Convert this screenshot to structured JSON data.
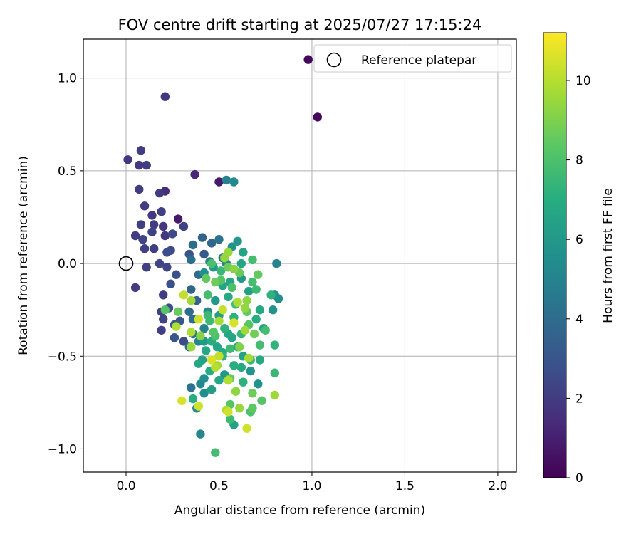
{
  "chart_data": {
    "type": "scatter",
    "title": "FOV centre drift starting at 2025/07/27 17:15:24",
    "xlabel": "Angular distance from reference (arcmin)",
    "ylabel": "Rotation from reference (arcmin)",
    "xlim": [
      -0.23,
      2.1
    ],
    "ylim": [
      -1.125,
      1.21
    ],
    "xticks": [
      0.0,
      0.5,
      1.0,
      1.5,
      2.0
    ],
    "xtick_labels": [
      "0.0",
      "0.5",
      "1.0",
      "1.5",
      "2.0"
    ],
    "yticks": [
      -1.0,
      -0.5,
      0.0,
      0.5,
      1.0
    ],
    "ytick_labels": [
      "−1.0",
      "−0.5",
      "0.0",
      "0.5",
      "1.0"
    ],
    "grid": true,
    "legend": {
      "position": "upper-right",
      "entries": [
        "Reference platepar"
      ]
    },
    "reference_point": {
      "x": 0.0,
      "y": 0.0,
      "marker": "open-circle"
    },
    "colorbar": {
      "label": "Hours from first FF file",
      "range": [
        0,
        11.2
      ],
      "ticks": [
        0,
        2,
        4,
        6,
        8,
        10
      ],
      "tick_labels": [
        "0",
        "2",
        "4",
        "6",
        "8",
        "10"
      ],
      "colormap": "viridis"
    },
    "series": [
      {
        "points": [
          [
            0.98,
            1.1,
            0.2
          ],
          [
            1.03,
            0.79,
            0.3
          ],
          [
            0.21,
            0.9,
            1.8
          ],
          [
            0.01,
            0.56,
            1.9
          ],
          [
            0.08,
            0.61,
            2.0
          ],
          [
            0.07,
            0.53,
            1.9
          ],
          [
            0.11,
            0.53,
            2.0
          ],
          [
            0.37,
            0.48,
            1.3
          ],
          [
            0.5,
            0.44,
            0.8
          ],
          [
            0.54,
            0.45,
            5.0
          ],
          [
            0.58,
            0.44,
            5.3
          ],
          [
            0.07,
            0.4,
            2.0
          ],
          [
            0.18,
            0.38,
            1.9
          ],
          [
            0.21,
            0.39,
            1.4
          ],
          [
            0.1,
            0.31,
            2.0
          ],
          [
            0.14,
            0.26,
            1.9
          ],
          [
            0.19,
            0.28,
            2.2
          ],
          [
            0.28,
            0.24,
            0.8
          ],
          [
            0.08,
            0.21,
            2.1
          ],
          [
            0.15,
            0.21,
            2.0
          ],
          [
            0.2,
            0.2,
            1.8
          ],
          [
            0.31,
            0.2,
            2.2
          ],
          [
            0.05,
            0.15,
            2.0
          ],
          [
            0.09,
            0.13,
            2.3
          ],
          [
            0.14,
            0.17,
            2.2
          ],
          [
            0.21,
            0.15,
            1.8
          ],
          [
            0.25,
            0.16,
            2.5
          ],
          [
            0.36,
            0.1,
            4.0
          ],
          [
            0.41,
            0.14,
            3.6
          ],
          [
            0.46,
            0.11,
            3.8
          ],
          [
            0.5,
            0.13,
            4.3
          ],
          [
            0.1,
            0.08,
            2.2
          ],
          [
            0.15,
            0.08,
            2.1
          ],
          [
            0.22,
            0.06,
            2.7
          ],
          [
            0.24,
            0.07,
            2.5
          ],
          [
            0.34,
            0.05,
            3.0
          ],
          [
            0.42,
            0.05,
            3.2
          ],
          [
            0.52,
            0.03,
            4.4
          ],
          [
            0.18,
            0.0,
            2.3
          ],
          [
            0.11,
            -0.02,
            2.2
          ],
          [
            0.22,
            -0.02,
            2.4
          ],
          [
            0.35,
            0.02,
            4.0
          ],
          [
            0.45,
            0.01,
            4.8
          ],
          [
            0.54,
            0.0,
            5.2
          ],
          [
            0.57,
            0.09,
            5.8
          ],
          [
            0.6,
            0.12,
            6.0
          ],
          [
            0.63,
            0.06,
            6.5
          ],
          [
            0.68,
            0.02,
            7.8
          ],
          [
            0.81,
            0.0,
            5.0
          ],
          [
            0.05,
            -0.13,
            2.0
          ],
          [
            0.27,
            -0.06,
            2.8
          ],
          [
            0.2,
            -0.17,
            2.0
          ],
          [
            0.24,
            -0.11,
            2.8
          ],
          [
            0.35,
            -0.14,
            3.6
          ],
          [
            0.39,
            -0.06,
            4.0
          ],
          [
            0.42,
            -0.05,
            5.5
          ],
          [
            0.47,
            -0.02,
            6.1
          ],
          [
            0.43,
            -0.08,
            8.5
          ],
          [
            0.51,
            -0.04,
            7.5
          ],
          [
            0.55,
            0.06,
            9.5
          ],
          [
            0.62,
            -0.08,
            6.0
          ],
          [
            0.66,
            -0.15,
            6.3
          ],
          [
            0.71,
            -0.06,
            8.5
          ],
          [
            0.7,
            -0.14,
            7.6
          ],
          [
            0.78,
            -0.17,
            7.2
          ],
          [
            0.8,
            -0.17,
            5.5
          ],
          [
            0.82,
            -0.19,
            5.6
          ],
          [
            0.19,
            -0.26,
            2.2
          ],
          [
            0.23,
            -0.24,
            2.7
          ],
          [
            0.34,
            -0.26,
            4.0
          ],
          [
            0.38,
            -0.2,
            3.5
          ],
          [
            0.36,
            -0.3,
            4.0
          ],
          [
            0.44,
            -0.26,
            5.3
          ],
          [
            0.48,
            -0.2,
            6.0
          ],
          [
            0.52,
            -0.12,
            6.5
          ],
          [
            0.55,
            -0.18,
            6.8
          ],
          [
            0.59,
            -0.22,
            7.8
          ],
          [
            0.65,
            -0.26,
            8.5
          ],
          [
            0.72,
            -0.25,
            6.8
          ],
          [
            0.79,
            -0.25,
            5.7
          ],
          [
            0.2,
            -0.3,
            2.3
          ],
          [
            0.26,
            -0.33,
            3.3
          ],
          [
            0.29,
            -0.31,
            3.0
          ],
          [
            0.36,
            -0.38,
            4.2
          ],
          [
            0.42,
            -0.35,
            5.0
          ],
          [
            0.45,
            -0.31,
            7.6
          ],
          [
            0.5,
            -0.28,
            6.2
          ],
          [
            0.53,
            -0.35,
            7.2
          ],
          [
            0.57,
            -0.4,
            6.6
          ],
          [
            0.62,
            -0.38,
            7.4
          ],
          [
            0.66,
            -0.33,
            8.2
          ],
          [
            0.7,
            -0.3,
            7.0
          ],
          [
            0.74,
            -0.35,
            6.4
          ],
          [
            0.19,
            -0.36,
            2.1
          ],
          [
            0.26,
            -0.4,
            3.0
          ],
          [
            0.31,
            -0.42,
            2.6
          ],
          [
            0.34,
            -0.45,
            4.0
          ],
          [
            0.39,
            -0.42,
            5.1
          ],
          [
            0.43,
            -0.47,
            6.8
          ],
          [
            0.49,
            -0.45,
            6.6
          ],
          [
            0.52,
            -0.5,
            7.2
          ],
          [
            0.56,
            -0.46,
            7.6
          ],
          [
            0.6,
            -0.45,
            6.6
          ],
          [
            0.63,
            -0.5,
            6.4
          ],
          [
            0.67,
            -0.52,
            7.5
          ],
          [
            0.72,
            -0.44,
            7.8
          ],
          [
            0.8,
            -0.44,
            7.3
          ],
          [
            0.35,
            -0.45,
            9.5
          ],
          [
            0.41,
            -0.52,
            6.4
          ],
          [
            0.45,
            -0.58,
            6.9
          ],
          [
            0.49,
            -0.55,
            9.6
          ],
          [
            0.53,
            -0.6,
            6.0
          ],
          [
            0.58,
            -0.55,
            7.0
          ],
          [
            0.62,
            -0.56,
            6.8
          ],
          [
            0.67,
            -0.58,
            5.8
          ],
          [
            0.72,
            -0.52,
            6.8
          ],
          [
            0.8,
            -0.59,
            7.5
          ],
          [
            0.35,
            -0.67,
            4.3
          ],
          [
            0.4,
            -0.65,
            5.3
          ],
          [
            0.42,
            -0.62,
            5.6
          ],
          [
            0.46,
            -0.68,
            6.2
          ],
          [
            0.5,
            -0.63,
            6.6
          ],
          [
            0.56,
            -0.62,
            8.5
          ],
          [
            0.59,
            -0.69,
            9.3
          ],
          [
            0.63,
            -0.64,
            7.2
          ],
          [
            0.68,
            -0.7,
            8.7
          ],
          [
            0.71,
            -0.65,
            5.7
          ],
          [
            0.73,
            -0.74,
            8.2
          ],
          [
            0.8,
            -0.71,
            9.6
          ],
          [
            0.3,
            -0.74,
            10.6
          ],
          [
            0.36,
            -0.73,
            7.0
          ],
          [
            0.38,
            -0.78,
            5.2
          ],
          [
            0.39,
            -0.77,
            10.4
          ],
          [
            0.42,
            -0.7,
            5.5
          ],
          [
            0.54,
            -0.79,
            9.8
          ],
          [
            0.56,
            -0.84,
            7.6
          ],
          [
            0.58,
            -0.87,
            6.4
          ],
          [
            0.61,
            -0.78,
            9.5
          ],
          [
            0.65,
            -0.89,
            10.4
          ],
          [
            0.67,
            -0.8,
            8.0
          ],
          [
            0.68,
            -0.78,
            8.4
          ],
          [
            0.4,
            -0.92,
            5.2
          ],
          [
            0.48,
            -1.02,
            7.8
          ],
          [
            0.56,
            -0.76,
            8.2
          ],
          [
            0.55,
            -0.8,
            10.4
          ],
          [
            0.31,
            -0.17,
            10.2
          ],
          [
            0.35,
            -0.2,
            9.6
          ],
          [
            0.28,
            -0.26,
            8.6
          ],
          [
            0.39,
            -0.3,
            10.4
          ],
          [
            0.27,
            -0.34,
            9.9
          ],
          [
            0.35,
            -0.37,
            9.9
          ],
          [
            0.4,
            -0.39,
            9.2
          ],
          [
            0.5,
            -0.5,
            10.2
          ],
          [
            0.48,
            -0.56,
            10.0
          ],
          [
            0.46,
            -0.52,
            10.6
          ],
          [
            0.55,
            -0.63,
            9.9
          ],
          [
            0.58,
            -0.32,
            10.6
          ],
          [
            0.6,
            -0.21,
            9.8
          ],
          [
            0.64,
            -0.24,
            9.4
          ],
          [
            0.66,
            -0.51,
            9.7
          ],
          [
            0.64,
            -0.36,
            9.6
          ],
          [
            0.52,
            -0.25,
            10.2
          ],
          [
            0.5,
            -0.31,
            9.7
          ],
          [
            0.48,
            -0.1,
            8.7
          ],
          [
            0.51,
            -0.09,
            8.2
          ],
          [
            0.44,
            -0.17,
            7.8
          ],
          [
            0.57,
            -0.13,
            8.0
          ],
          [
            0.61,
            -0.05,
            8.6
          ],
          [
            0.68,
            -0.1,
            7.8
          ],
          [
            0.46,
            0.0,
            7.9
          ],
          [
            0.58,
            -0.03,
            9.2
          ],
          [
            0.53,
            0.03,
            9.4
          ],
          [
            0.55,
            -0.02,
            8.7
          ],
          [
            0.62,
            0.0,
            6.6
          ],
          [
            0.48,
            -0.39,
            8.0
          ],
          [
            0.21,
            -0.25,
            8.2
          ],
          [
            0.39,
            -0.54,
            6.6
          ],
          [
            0.46,
            -0.42,
            7.0
          ],
          [
            0.52,
            -0.48,
            6.9
          ],
          [
            0.58,
            -0.29,
            7.2
          ],
          [
            0.56,
            -0.1,
            6.6
          ],
          [
            0.61,
            -0.45,
            9.1
          ],
          [
            0.69,
            -0.38,
            8.8
          ],
          [
            0.75,
            -0.36,
            7.8
          ],
          [
            0.44,
            -0.28,
            7.6
          ],
          [
            0.42,
            -0.42,
            6.1
          ],
          [
            0.55,
            -0.38,
            6.7
          ],
          [
            0.47,
            -0.37,
            8.2
          ],
          [
            0.65,
            -0.2,
            9.3
          ]
        ]
      }
    ]
  }
}
